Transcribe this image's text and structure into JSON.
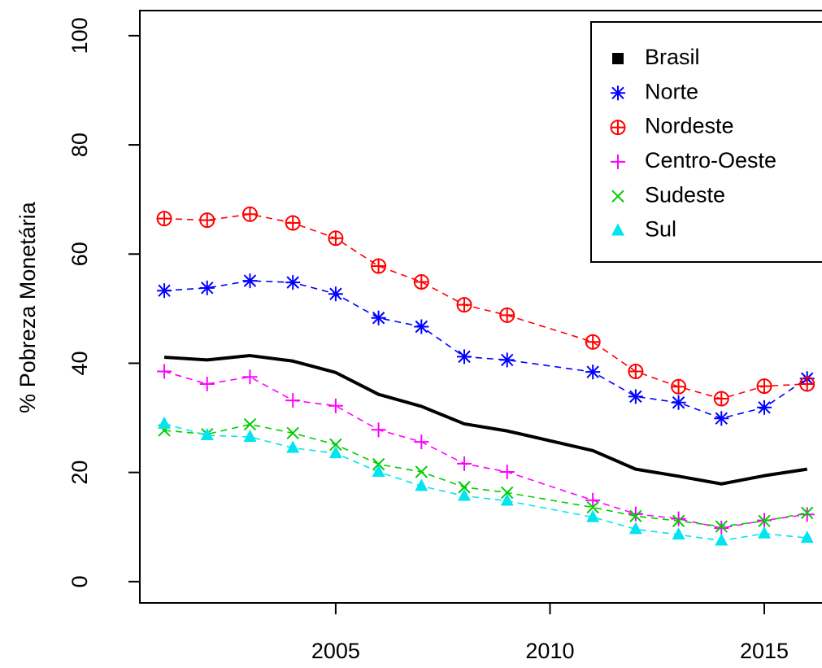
{
  "chart_data": {
    "type": "line",
    "y_label": "% Pobreza Monetária",
    "x": [
      2001,
      2002,
      2003,
      2004,
      2005,
      2006,
      2007,
      2008,
      2009,
      2011,
      2012,
      2013,
      2014,
      2015,
      2016
    ],
    "xlim": [
      2000.43,
      2016.29
    ],
    "xticks": [
      2005,
      2010,
      2015
    ],
    "ylim": [
      -3.9,
      104.6
    ],
    "yticks": [
      0,
      20,
      40,
      60,
      80,
      100
    ],
    "legend": "topright",
    "series": [
      {
        "name": "Brasil",
        "color": "#000000",
        "marker": "square",
        "dashed": false,
        "values": [
          41.1,
          40.6,
          41.4,
          40.4,
          38.3,
          34.3,
          32.1,
          28.9,
          27.6,
          24.0,
          20.6,
          19.3,
          17.9,
          19.4,
          20.6
        ]
      },
      {
        "name": "Norte",
        "color": "#0000ff",
        "marker": "asterisk",
        "dashed": true,
        "values": [
          53.3,
          53.8,
          55.1,
          54.8,
          52.7,
          48.3,
          46.7,
          41.2,
          40.6,
          38.4,
          33.9,
          32.8,
          29.9,
          31.9,
          37.2
        ]
      },
      {
        "name": "Nordeste",
        "color": "#ff0000",
        "marker": "circle-plus",
        "dashed": true,
        "values": [
          66.5,
          66.2,
          67.3,
          65.7,
          62.9,
          57.8,
          54.9,
          50.7,
          48.8,
          43.9,
          38.5,
          35.7,
          33.5,
          35.8,
          36.2
        ]
      },
      {
        "name": "Centro-Oeste",
        "color": "#ff00ff",
        "marker": "plus",
        "dashed": true,
        "values": [
          38.5,
          36.2,
          37.5,
          33.2,
          32.2,
          27.8,
          25.6,
          21.6,
          20.1,
          14.9,
          12.4,
          11.5,
          9.8,
          11.2,
          12.3
        ]
      },
      {
        "name": "Sudeste",
        "color": "#00cd00",
        "marker": "cross",
        "dashed": true,
        "values": [
          27.7,
          27.0,
          28.8,
          27.2,
          25.1,
          21.5,
          20.1,
          17.3,
          16.3,
          13.6,
          12.0,
          11.1,
          10.1,
          11.1,
          12.6
        ]
      },
      {
        "name": "Sul",
        "color": "#00e5ee",
        "marker": "triangle",
        "dashed": true,
        "values": [
          28.9,
          26.8,
          26.5,
          24.5,
          23.5,
          20.1,
          17.5,
          15.7,
          14.8,
          11.8,
          9.6,
          8.6,
          7.5,
          8.8,
          8.0
        ]
      }
    ]
  }
}
